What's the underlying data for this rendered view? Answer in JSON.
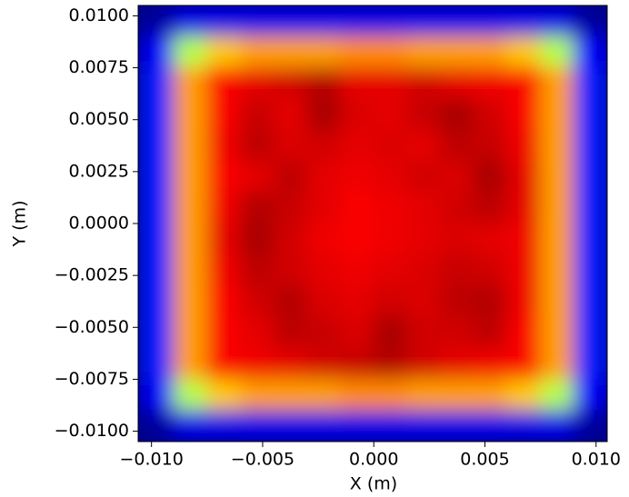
{
  "chart_data": {
    "type": "heatmap",
    "colormap": "jet",
    "x_label": "X (m)",
    "y_label": "Y (m)",
    "xlim": [
      -0.0106,
      0.0105
    ],
    "ylim": [
      -0.0105,
      0.0105
    ],
    "xticks": [
      {
        "value": -0.01,
        "label": "−0.010"
      },
      {
        "value": -0.005,
        "label": "−0.005"
      },
      {
        "value": 0,
        "label": "0.000"
      },
      {
        "value": 0.005,
        "label": "0.005"
      },
      {
        "value": 0.01,
        "label": "0.010"
      }
    ],
    "yticks": [
      {
        "value": -0.01,
        "label": "−0.0100"
      },
      {
        "value": -0.0075,
        "label": "−0.0075"
      },
      {
        "value": -0.005,
        "label": "−0.0050"
      },
      {
        "value": -0.0025,
        "label": "−0.0025"
      },
      {
        "value": 0,
        "label": "0.0000"
      },
      {
        "value": 0.0025,
        "label": "0.0025"
      },
      {
        "value": 0.005,
        "label": "0.0050"
      },
      {
        "value": 0.0075,
        "label": "0.0075"
      },
      {
        "value": 0.01,
        "label": "0.0100"
      }
    ],
    "x": [
      -0.00975,
      -0.00825,
      -0.00675,
      -0.00525,
      -0.00375,
      -0.00225,
      -0.00075,
      0.00075,
      0.00225,
      0.00375,
      0.00525,
      0.00675,
      0.00825,
      0.00975
    ],
    "y": [
      0.00975,
      0.00825,
      0.00675,
      0.00525,
      0.00375,
      0.00225,
      0.00075,
      -0.00075,
      -0.00225,
      -0.00375,
      -0.00525,
      -0.00675,
      -0.00825,
      -0.00975
    ],
    "z": [
      [
        0.03,
        0.1,
        0.1,
        0.1,
        0.1,
        0.1,
        0.1,
        0.1,
        0.1,
        0.1,
        0.1,
        0.1,
        0.1,
        0.03
      ],
      [
        0.12,
        0.55,
        0.68,
        0.72,
        0.72,
        0.72,
        0.74,
        0.74,
        0.72,
        0.72,
        0.72,
        0.68,
        0.55,
        0.12
      ],
      [
        0.15,
        0.72,
        0.88,
        0.9,
        0.92,
        0.95,
        0.9,
        0.9,
        0.92,
        0.9,
        0.89,
        0.88,
        0.72,
        0.15
      ],
      [
        0.15,
        0.72,
        0.88,
        0.93,
        0.9,
        0.96,
        0.91,
        0.9,
        0.93,
        0.96,
        0.92,
        0.88,
        0.72,
        0.15
      ],
      [
        0.15,
        0.72,
        0.89,
        0.94,
        0.91,
        0.92,
        0.9,
        0.91,
        0.9,
        0.94,
        0.93,
        0.89,
        0.72,
        0.15
      ],
      [
        0.15,
        0.72,
        0.88,
        0.9,
        0.94,
        0.9,
        0.89,
        0.9,
        0.92,
        0.91,
        0.96,
        0.9,
        0.72,
        0.15
      ],
      [
        0.15,
        0.72,
        0.89,
        0.95,
        0.93,
        0.9,
        0.88,
        0.89,
        0.9,
        0.92,
        0.94,
        0.9,
        0.72,
        0.15
      ],
      [
        0.15,
        0.72,
        0.9,
        0.96,
        0.92,
        0.89,
        0.88,
        0.89,
        0.9,
        0.91,
        0.9,
        0.89,
        0.72,
        0.15
      ],
      [
        0.15,
        0.72,
        0.89,
        0.94,
        0.92,
        0.9,
        0.89,
        0.9,
        0.91,
        0.93,
        0.92,
        0.89,
        0.72,
        0.15
      ],
      [
        0.15,
        0.72,
        0.88,
        0.92,
        0.95,
        0.91,
        0.9,
        0.92,
        0.91,
        0.94,
        0.95,
        0.89,
        0.72,
        0.15
      ],
      [
        0.15,
        0.72,
        0.88,
        0.9,
        0.94,
        0.93,
        0.91,
        0.96,
        0.92,
        0.92,
        0.94,
        0.88,
        0.72,
        0.15
      ],
      [
        0.15,
        0.72,
        0.88,
        0.89,
        0.9,
        0.92,
        0.93,
        0.95,
        0.92,
        0.9,
        0.89,
        0.88,
        0.72,
        0.15
      ],
      [
        0.12,
        0.55,
        0.68,
        0.72,
        0.72,
        0.72,
        0.74,
        0.74,
        0.72,
        0.72,
        0.72,
        0.68,
        0.55,
        0.12
      ],
      [
        0.03,
        0.1,
        0.1,
        0.1,
        0.1,
        0.1,
        0.1,
        0.1,
        0.1,
        0.1,
        0.1,
        0.1,
        0.1,
        0.03
      ]
    ]
  }
}
